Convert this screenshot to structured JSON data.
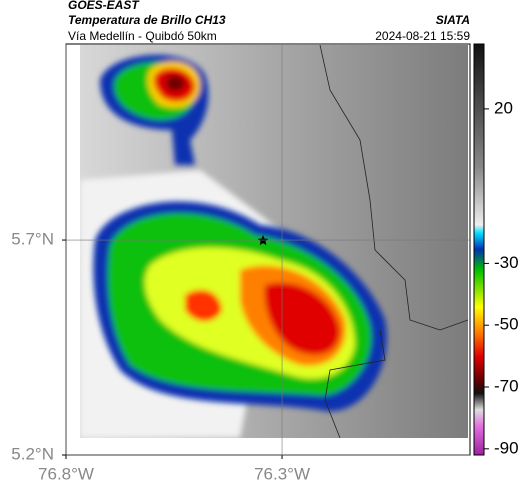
{
  "header": {
    "title": "GOES-EAST",
    "subtitle": "Temperatura de Brillo CH13",
    "route": "Vía Medellín - Quibdó 50km",
    "source": "SIATA",
    "timestamp": "2024-08-21 15:59"
  },
  "map": {
    "xlim": [
      -76.8,
      -75.865
    ],
    "ylim": [
      5.2,
      6.156
    ],
    "xticks": [
      {
        "value": -76.8,
        "label": "76.8°W"
      },
      {
        "value": -76.3,
        "label": "76.3°W"
      }
    ],
    "yticks": [
      {
        "value": 5.2,
        "label": "5.2°N"
      },
      {
        "value": 5.7,
        "label": "5.7°N"
      }
    ],
    "grid": true
  },
  "colorbar": {
    "lim": [
      -92,
      41
    ],
    "ticks": [
      20,
      -30,
      -50,
      -70,
      -90
    ]
  }
}
